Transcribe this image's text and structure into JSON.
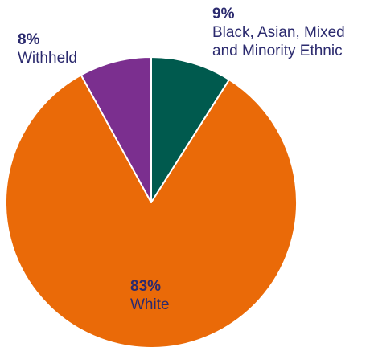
{
  "chart_data": {
    "type": "pie",
    "slices": [
      {
        "label": "Black, Asian, Mixed and Minority Ethnic",
        "label_lines": [
          "Black, Asian, Mixed",
          "and Minority Ethnic"
        ],
        "value": 9,
        "value_label": "9%",
        "color": "#005a4e"
      },
      {
        "label": "White",
        "label_lines": [
          "White"
        ],
        "value": 83,
        "value_label": "83%",
        "color": "#ea6a08"
      },
      {
        "label": "Withheld",
        "label_lines": [
          "Withheld"
        ],
        "value": 8,
        "value_label": "8%",
        "color": "#7b2f8f"
      }
    ],
    "start": "12 o'clock",
    "direction": "clockwise",
    "legend": "none"
  }
}
